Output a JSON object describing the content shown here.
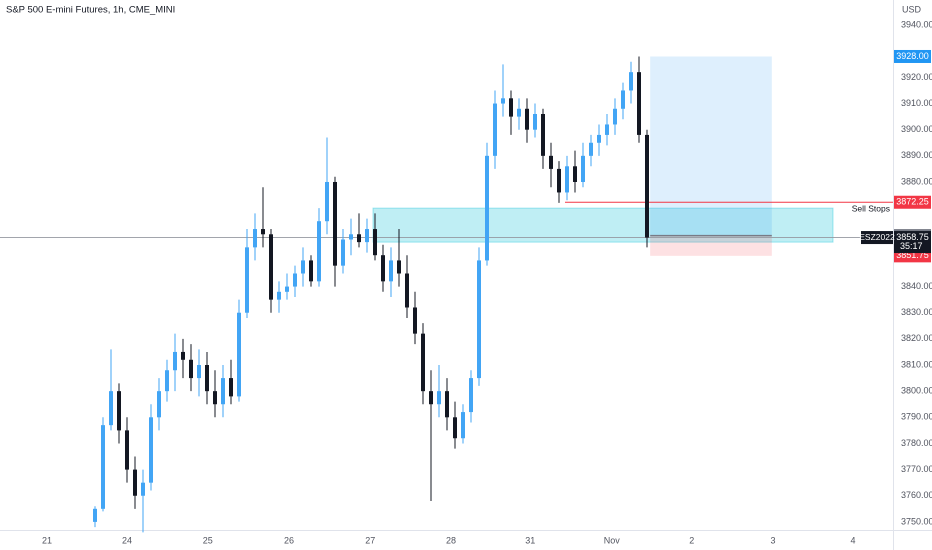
{
  "chart_data": {
    "type": "candlestick",
    "title": "S&P 500 E-mini Futures, 1h, CME_MINI",
    "currency": "USD",
    "up_color": "#42a5f5",
    "down_color": "#131722",
    "x": [
      0,
      1,
      2,
      3,
      4,
      5,
      6,
      7,
      8,
      9,
      10,
      11,
      12,
      13,
      14,
      15,
      16,
      17,
      18,
      19,
      20,
      21,
      22,
      23,
      24,
      25,
      26,
      27,
      28,
      29,
      30,
      31,
      32,
      33,
      34,
      35,
      36,
      37,
      38,
      39,
      40,
      41,
      42,
      43,
      44,
      45,
      46,
      47,
      48,
      49,
      50,
      51,
      52,
      53,
      54,
      55,
      56,
      57,
      58,
      59,
      60,
      61,
      62,
      63,
      64,
      65,
      66,
      67,
      68,
      69
    ],
    "open": [
      3750,
      3755,
      3787,
      3800,
      3785,
      3770,
      3760,
      3765,
      3790,
      3800,
      3808,
      3815,
      3812,
      3805,
      3810,
      3800,
      3795,
      3805,
      3798,
      3830,
      3855,
      3862,
      3860,
      3835,
      3838,
      3840,
      3845,
      3850,
      3842,
      3865,
      3880,
      3848,
      3858,
      3860,
      3857,
      3862,
      3852,
      3842,
      3850,
      3845,
      3832,
      3822,
      3800,
      3795,
      3800,
      3790,
      3782,
      3792,
      3805,
      3850,
      3890,
      3910,
      3912,
      3905,
      3908,
      3900,
      3906,
      3890,
      3885,
      3876,
      3886,
      3880,
      3890,
      3895,
      3898,
      3902,
      3908,
      3915,
      3922,
      3898
    ],
    "high": [
      3756,
      3790,
      3816,
      3803,
      3790,
      3775,
      3770,
      3795,
      3805,
      3812,
      3822,
      3820,
      3818,
      3816,
      3815,
      3808,
      3810,
      3812,
      3835,
      3862,
      3868,
      3878,
      3862,
      3842,
      3845,
      3848,
      3855,
      3852,
      3870,
      3897,
      3882,
      3862,
      3866,
      3868,
      3866,
      3868,
      3856,
      3855,
      3862,
      3852,
      3838,
      3826,
      3808,
      3810,
      3805,
      3796,
      3795,
      3808,
      3855,
      3895,
      3915,
      3925,
      3915,
      3912,
      3912,
      3910,
      3908,
      3895,
      3888,
      3890,
      3892,
      3895,
      3898,
      3902,
      3906,
      3912,
      3918,
      3926,
      3928,
      3900
    ],
    "low": [
      3748,
      3754,
      3785,
      3780,
      3765,
      3755,
      3746,
      3762,
      3785,
      3796,
      3800,
      3805,
      3800,
      3798,
      3795,
      3790,
      3790,
      3795,
      3796,
      3828,
      3850,
      3855,
      3830,
      3830,
      3835,
      3836,
      3840,
      3840,
      3840,
      3860,
      3840,
      3845,
      3852,
      3855,
      3853,
      3850,
      3838,
      3836,
      3840,
      3828,
      3818,
      3795,
      3758,
      3790,
      3785,
      3778,
      3780,
      3788,
      3802,
      3848,
      3885,
      3905,
      3898,
      3900,
      3895,
      3897,
      3885,
      3878,
      3872,
      3873,
      3876,
      3878,
      3886,
      3890,
      3894,
      3898,
      3904,
      3910,
      3895,
      3855
    ],
    "close": [
      3755,
      3787,
      3800,
      3785,
      3770,
      3760,
      3765,
      3790,
      3800,
      3808,
      3815,
      3812,
      3805,
      3810,
      3800,
      3795,
      3805,
      3798,
      3830,
      3855,
      3862,
      3860,
      3835,
      3838,
      3840,
      3845,
      3850,
      3842,
      3865,
      3880,
      3848,
      3858,
      3860,
      3857,
      3862,
      3852,
      3842,
      3850,
      3845,
      3832,
      3822,
      3800,
      3795,
      3800,
      3790,
      3782,
      3792,
      3805,
      3850,
      3890,
      3910,
      3912,
      3905,
      3908,
      3900,
      3906,
      3890,
      3885,
      3876,
      3886,
      3880,
      3890,
      3895,
      3898,
      3902,
      3908,
      3915,
      3922,
      3898,
      3858.75
    ],
    "xlim": [
      -11.875,
      99.75
    ],
    "xticks": [
      {
        "value": -6,
        "label": "21"
      },
      {
        "value": 4,
        "label": "24"
      },
      {
        "value": 14.1,
        "label": "25"
      },
      {
        "value": 24.25,
        "label": "26"
      },
      {
        "value": 34.4,
        "label": "27"
      },
      {
        "value": 44.5,
        "label": "28"
      },
      {
        "value": 54.4,
        "label": "31"
      },
      {
        "value": 64.6,
        "label": "Nov"
      },
      {
        "value": 74.6,
        "label": "2"
      },
      {
        "value": 84.75,
        "label": "3"
      },
      {
        "value": 94.75,
        "label": "4"
      }
    ],
    "ylim": [
      3746.9,
      3949.6
    ],
    "yticks": [
      {
        "value": 3750,
        "label": "3750.00"
      },
      {
        "value": 3760,
        "label": "3760.00"
      },
      {
        "value": 3770,
        "label": "3770.00"
      },
      {
        "value": 3780,
        "label": "3780.00"
      },
      {
        "value": 3790,
        "label": "3790.00"
      },
      {
        "value": 3800,
        "label": "3800.00"
      },
      {
        "value": 3810,
        "label": "3810.00"
      },
      {
        "value": 3820,
        "label": "3820.00"
      },
      {
        "value": 3830,
        "label": "3830.00"
      },
      {
        "value": 3840,
        "label": "3840.00"
      },
      {
        "value": 3880,
        "label": "3880.00"
      },
      {
        "value": 3890,
        "label": "3890.00"
      },
      {
        "value": 3900,
        "label": "3900.00"
      },
      {
        "value": 3910,
        "label": "3910.00"
      },
      {
        "value": 3920,
        "label": "3920.00"
      },
      {
        "value": 3940,
        "label": "3940.00"
      }
    ],
    "grid": false,
    "zone": {
      "from": 34.75,
      "to": 92.25,
      "low": 3857,
      "high": 3870,
      "color": "#00bcd4"
    },
    "position": {
      "from": 69.4,
      "to": 84.6,
      "target": {
        "value": 3928,
        "label": "3928.00",
        "color": "#2196f3"
      },
      "entry": {
        "value": 3859.5,
        "label": "3859.50",
        "color": "#787b86"
      },
      "stop": {
        "value": 3851.75,
        "label": "3851.75",
        "color": "#f23645"
      }
    },
    "sell_stops": {
      "from": 58.75,
      "value": 3872.25,
      "label": "3872.25",
      "text": "Sell Stops",
      "color": "#f23645"
    },
    "last_price": {
      "value": 3858.75,
      "label": "3858.75",
      "countdown": "35:17",
      "symbol": "ESZ2022"
    }
  }
}
